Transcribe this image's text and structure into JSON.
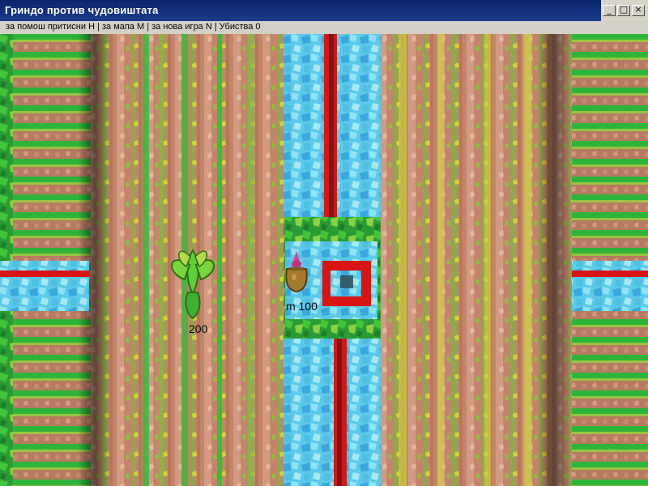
{
  "window": {
    "title": "Гриндо против чудовиштата",
    "controls": [
      "minimize",
      "maximize",
      "close"
    ]
  },
  "status_bar": {
    "text": "за помош притисни H | за мапа M | за нова игра N | Убиства 0"
  },
  "game": {
    "monster": {
      "hp_label": "200",
      "icon": "plant-monster-icon"
    },
    "player": {
      "label": "m 100",
      "icon": "sack-hero-icon"
    }
  },
  "colors": {
    "titlebar": "#0a246a",
    "grass": "#2f9b38",
    "water": "#4fc6e8",
    "dirt": "#c58a72",
    "lava": "#d11616"
  }
}
